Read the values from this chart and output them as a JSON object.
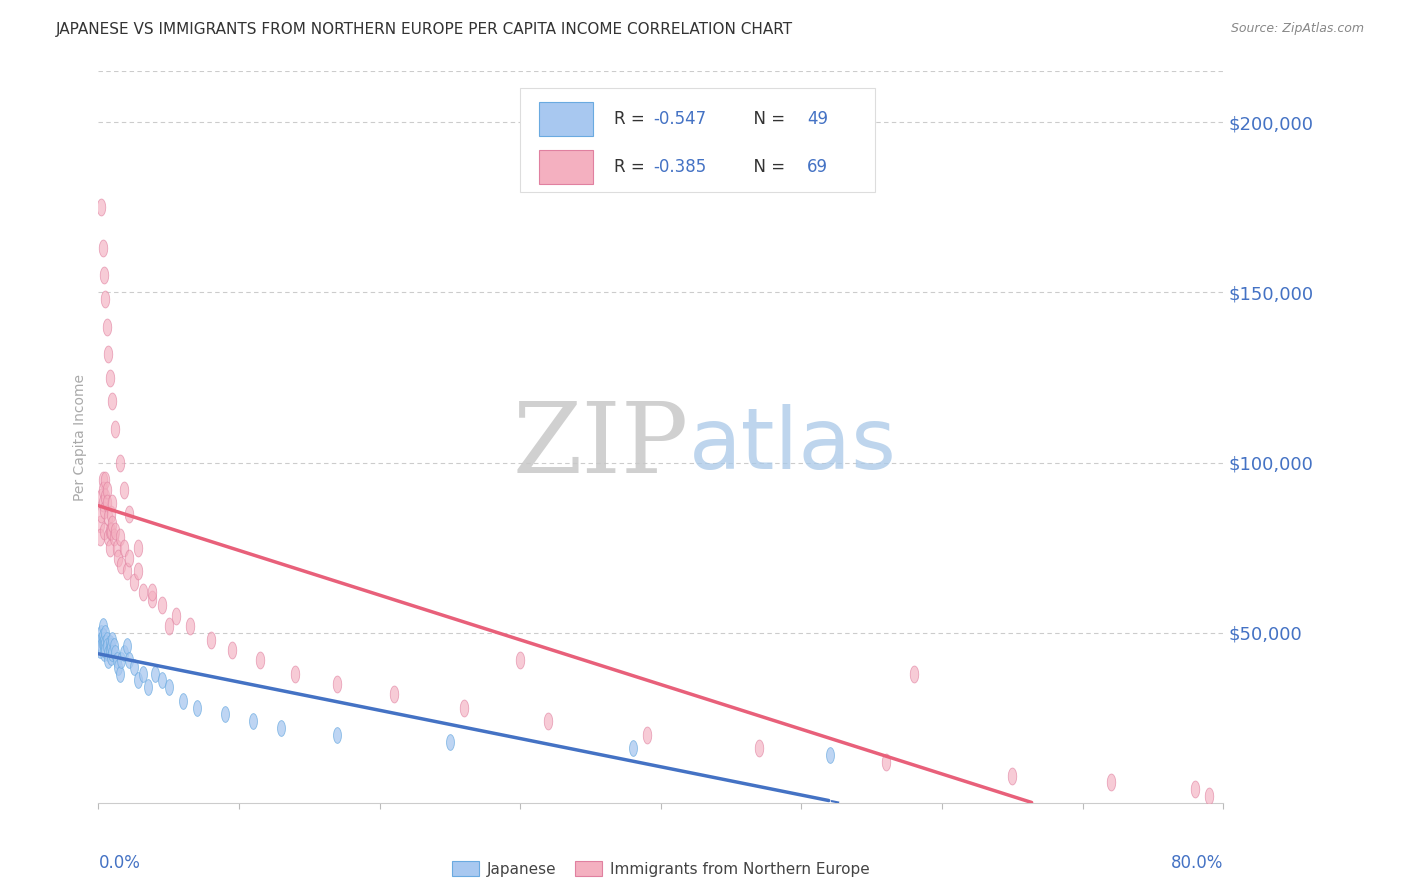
{
  "title": "JAPANESE VS IMMIGRANTS FROM NORTHERN EUROPE PER CAPITA INCOME CORRELATION CHART",
  "source": "Source: ZipAtlas.com",
  "ylabel": "Per Capita Income",
  "yticks": [
    0,
    50000,
    100000,
    150000,
    200000
  ],
  "ytick_labels": [
    "",
    "$50,000",
    "$100,000",
    "$150,000",
    "$200,000"
  ],
  "xlim": [
    0.0,
    0.8
  ],
  "ylim": [
    0,
    215000
  ],
  "watermark_zip": "ZIP",
  "watermark_atlas": "atlas",
  "legend_r1": "-0.547",
  "legend_n1": "49",
  "legend_r2": "-0.385",
  "legend_n2": "69",
  "color_blue_fill": "#A8C8F0",
  "color_blue_edge": "#6AAAE0",
  "color_blue_line": "#4472C4",
  "color_pink_fill": "#F4B0C0",
  "color_pink_edge": "#E080A0",
  "color_pink_line": "#E8607A",
  "color_grid": "#CCCCCC",
  "color_axis_text": "#4472C4",
  "color_title": "#333333",
  "color_source": "#888888",
  "background_color": "#FFFFFF",
  "japanese_x": [
    0.001,
    0.001,
    0.002,
    0.002,
    0.002,
    0.003,
    0.003,
    0.003,
    0.004,
    0.004,
    0.004,
    0.005,
    0.005,
    0.005,
    0.006,
    0.006,
    0.007,
    0.007,
    0.008,
    0.008,
    0.009,
    0.009,
    0.01,
    0.01,
    0.011,
    0.012,
    0.013,
    0.014,
    0.015,
    0.016,
    0.018,
    0.02,
    0.022,
    0.025,
    0.028,
    0.032,
    0.035,
    0.04,
    0.045,
    0.05,
    0.06,
    0.07,
    0.09,
    0.11,
    0.13,
    0.17,
    0.25,
    0.38,
    0.52
  ],
  "japanese_y": [
    47000,
    45000,
    50000,
    48000,
    46000,
    52000,
    49000,
    47000,
    48000,
    46000,
    44000,
    50000,
    47000,
    45000,
    48000,
    46000,
    44000,
    42000,
    47000,
    45000,
    43000,
    46000,
    48000,
    44000,
    46000,
    44000,
    42000,
    40000,
    38000,
    42000,
    44000,
    46000,
    42000,
    40000,
    36000,
    38000,
    34000,
    38000,
    36000,
    34000,
    30000,
    28000,
    26000,
    24000,
    22000,
    20000,
    18000,
    16000,
    14000
  ],
  "northern_europe_x": [
    0.001,
    0.001,
    0.002,
    0.002,
    0.003,
    0.003,
    0.003,
    0.004,
    0.004,
    0.005,
    0.005,
    0.006,
    0.006,
    0.007,
    0.007,
    0.008,
    0.008,
    0.009,
    0.009,
    0.01,
    0.01,
    0.011,
    0.012,
    0.013,
    0.014,
    0.015,
    0.016,
    0.018,
    0.02,
    0.022,
    0.025,
    0.028,
    0.032,
    0.038,
    0.045,
    0.055,
    0.065,
    0.08,
    0.095,
    0.115,
    0.14,
    0.17,
    0.21,
    0.26,
    0.32,
    0.39,
    0.47,
    0.56,
    0.65,
    0.72,
    0.78,
    0.002,
    0.003,
    0.004,
    0.005,
    0.006,
    0.007,
    0.008,
    0.01,
    0.012,
    0.015,
    0.018,
    0.022,
    0.028,
    0.038,
    0.05,
    0.3,
    0.58,
    0.79
  ],
  "northern_europe_y": [
    82000,
    78000,
    90000,
    85000,
    95000,
    92000,
    88000,
    86000,
    80000,
    95000,
    90000,
    92000,
    88000,
    84000,
    78000,
    80000,
    75000,
    85000,
    80000,
    88000,
    82000,
    78000,
    80000,
    75000,
    72000,
    78000,
    70000,
    75000,
    68000,
    72000,
    65000,
    68000,
    62000,
    60000,
    58000,
    55000,
    52000,
    48000,
    45000,
    42000,
    38000,
    35000,
    32000,
    28000,
    24000,
    20000,
    16000,
    12000,
    8000,
    6000,
    4000,
    175000,
    163000,
    155000,
    148000,
    140000,
    132000,
    125000,
    118000,
    110000,
    100000,
    92000,
    85000,
    75000,
    62000,
    52000,
    42000,
    38000,
    2000
  ]
}
